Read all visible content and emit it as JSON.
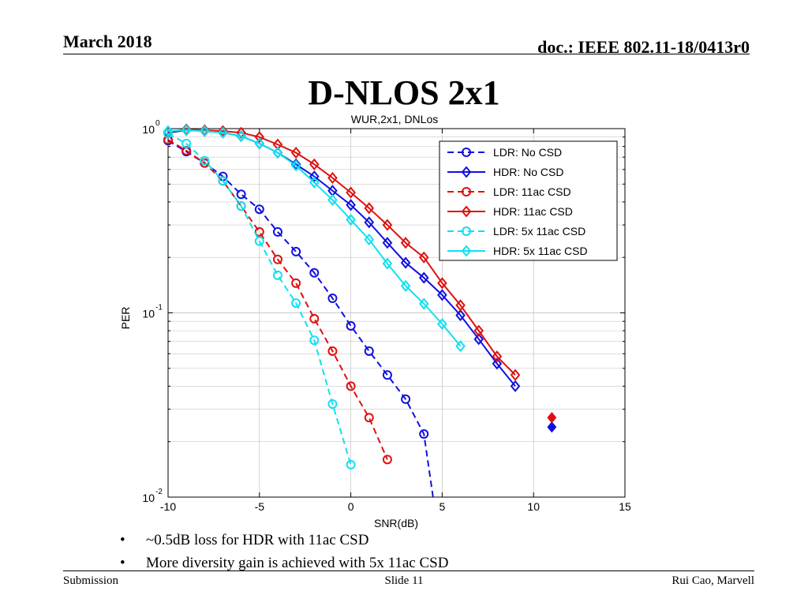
{
  "header": {
    "date": "March 2018",
    "doc": "doc.: IEEE 802.11-18/0413r0"
  },
  "slide": {
    "title": "D-NLOS 2x1"
  },
  "bullets": [
    "~0.5dB loss for HDR with 11ac CSD",
    "More diversity gain is achieved with 5x 11ac CSD"
  ],
  "bullet_glyph": "•",
  "footer": {
    "left": "Submission",
    "center": "Slide 11",
    "right": "Rui Cao, Marvell"
  },
  "chart_data": {
    "type": "line",
    "title": "WUR,2x1, DNLos",
    "xlabel": "SNR(dB)",
    "ylabel": "PER",
    "xlim": [
      -10,
      15
    ],
    "ylim": [
      0.01,
      1
    ],
    "yscale": "log",
    "grid": true,
    "legend_position": "top-right",
    "x_ticks": [
      -10,
      -5,
      0,
      5,
      10,
      15
    ],
    "x_tick_labels": [
      "-10",
      "-5",
      "0",
      "5",
      "10",
      "15"
    ],
    "y_tick_labels": [
      {
        "value": 1,
        "base": "10",
        "exp": "0"
      },
      {
        "value": 0.1,
        "base": "10",
        "exp": "-1"
      },
      {
        "value": 0.01,
        "base": "10",
        "exp": "-2"
      }
    ],
    "series": [
      {
        "name": "LDR: No CSD",
        "color": "#1010e0",
        "dash": true,
        "marker": "circle",
        "x": [
          -10,
          -9,
          -8,
          -7,
          -6,
          -5,
          -4,
          -3,
          -2,
          -1,
          0,
          1,
          2,
          3,
          4
        ],
        "y": [
          0.86,
          0.75,
          0.65,
          0.55,
          0.44,
          0.365,
          0.275,
          0.215,
          0.165,
          0.12,
          0.085,
          0.062,
          0.046,
          0.034,
          0.022
        ],
        "tail": [
          4.5,
          0.01
        ]
      },
      {
        "name": "HDR: No CSD",
        "color": "#1010e0",
        "dash": false,
        "marker": "diamond",
        "x": [
          -10,
          -9,
          -8,
          -7,
          -6,
          -5,
          -4,
          -3,
          -2,
          -1,
          0,
          1,
          2,
          3,
          4,
          5,
          6,
          7,
          8,
          9,
          11
        ],
        "y": [
          0.95,
          0.98,
          0.97,
          0.95,
          0.91,
          0.83,
          0.74,
          0.64,
          0.55,
          0.46,
          0.385,
          0.31,
          0.24,
          0.187,
          0.155,
          0.125,
          0.097,
          0.072,
          0.053,
          0.04,
          0.024
        ],
        "isolated_last": true
      },
      {
        "name": "LDR: 11ac CSD",
        "color": "#e01010",
        "dash": true,
        "marker": "circle",
        "x": [
          -10,
          -9,
          -8,
          -7,
          -6,
          -5,
          -4,
          -3,
          -2,
          -1,
          0,
          1,
          2
        ],
        "y": [
          0.87,
          0.76,
          0.65,
          0.52,
          0.38,
          0.275,
          0.195,
          0.145,
          0.093,
          0.062,
          0.04,
          0.027,
          0.016
        ]
      },
      {
        "name": "HDR: 11ac CSD",
        "color": "#e01010",
        "dash": false,
        "marker": "diamond",
        "x": [
          -10,
          -9,
          -8,
          -7,
          -6,
          -5,
          -4,
          -3,
          -2,
          -1,
          0,
          1,
          2,
          3,
          4,
          5,
          6,
          7,
          8,
          9,
          11
        ],
        "y": [
          0.96,
          0.99,
          0.98,
          0.97,
          0.95,
          0.9,
          0.82,
          0.74,
          0.64,
          0.54,
          0.45,
          0.37,
          0.3,
          0.24,
          0.2,
          0.145,
          0.11,
          0.08,
          0.058,
          0.046,
          0.027
        ],
        "isolated_last": true
      },
      {
        "name": "LDR: 5x 11ac CSD",
        "color": "#10e0f0",
        "dash": true,
        "marker": "circle",
        "x": [
          -10,
          -9,
          -8,
          -7,
          -6,
          -5,
          -4,
          -3,
          -2,
          -1,
          0
        ],
        "y": [
          0.94,
          0.83,
          0.67,
          0.52,
          0.38,
          0.245,
          0.16,
          0.113,
          0.071,
          0.032,
          0.015
        ]
      },
      {
        "name": "HDR: 5x 11ac CSD",
        "color": "#10e0f0",
        "dash": false,
        "marker": "diamond",
        "x": [
          -10,
          -9,
          -8,
          -7,
          -6,
          -5,
          -4,
          -3,
          -2,
          -1,
          0,
          1,
          2,
          3,
          4,
          5,
          6
        ],
        "y": [
          0.97,
          0.98,
          0.97,
          0.95,
          0.91,
          0.83,
          0.74,
          0.63,
          0.51,
          0.41,
          0.32,
          0.25,
          0.185,
          0.14,
          0.112,
          0.087,
          0.066
        ]
      }
    ]
  }
}
